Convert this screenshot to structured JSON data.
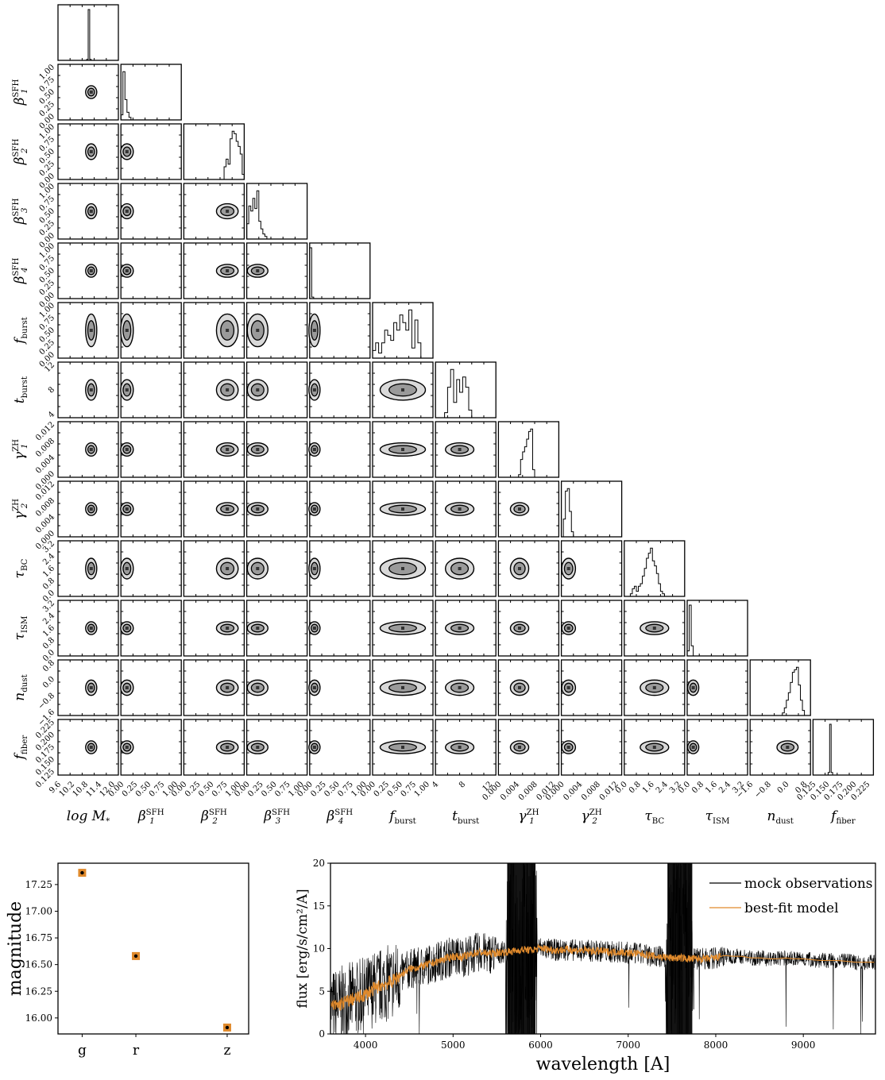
{
  "figure": {
    "corner_labels": [
      {
        "name": "log M*",
        "text": "log M*"
      },
      {
        "name": "beta1-sfh",
        "text": "β1 SFH"
      },
      {
        "name": "beta2-sfh",
        "text": "β2 SFH"
      },
      {
        "name": "beta3-sfh",
        "text": "β3 SFH"
      },
      {
        "name": "beta4-sfh",
        "text": "β4 SFH"
      },
      {
        "name": "f-burst",
        "text": "f burst"
      },
      {
        "name": "t-burst",
        "text": "t burst"
      },
      {
        "name": "gamma1-zh",
        "text": "γ1 ZH"
      },
      {
        "name": "gamma2-zh",
        "text": "γ2 ZH"
      },
      {
        "name": "tau-bc",
        "text": "τ BC"
      },
      {
        "name": "tau-ism",
        "text": "τ ISM"
      },
      {
        "name": "n-dust",
        "text": "n dust"
      },
      {
        "name": "f-fiber",
        "text": "f fiber"
      }
    ]
  },
  "chart_data": [
    {
      "type": "corner",
      "parameters": [
        {
          "sym": "log M",
          "sub": "*",
          "sup": "",
          "ticks": [
            "9.6",
            "10.2",
            "10.8",
            "11.4",
            "12.0"
          ],
          "hist": [
            0,
            0,
            0,
            0,
            0,
            0,
            0,
            0,
            0,
            0,
            0,
            0,
            0,
            0,
            0,
            0,
            0,
            0,
            0,
            0.02,
            1,
            0.02,
            0,
            0,
            0,
            0,
            0,
            0,
            0,
            0,
            0,
            0,
            0,
            0,
            0,
            0,
            0,
            0,
            0,
            0
          ],
          "center": [
            0.55,
            0.5
          ]
        },
        {
          "sym": "β",
          "sub": "1",
          "sup": "SFH",
          "ticks": [
            "0.00",
            "0.25",
            "0.50",
            "0.75",
            "1.00"
          ],
          "hist": [
            0.1,
            0.95,
            0.4,
            0.15,
            0.05,
            0,
            0,
            0,
            0,
            0,
            0,
            0,
            0,
            0,
            0,
            0,
            0,
            0,
            0,
            0,
            0,
            0,
            0,
            0,
            0,
            0,
            0,
            0,
            0,
            0
          ],
          "center": [
            0.1,
            0.5
          ]
        },
        {
          "sym": "β",
          "sub": "2",
          "sup": "SFH",
          "ticks": [
            "0.00",
            "0.25",
            "0.50",
            "0.75",
            "1.00"
          ],
          "hist": [
            0,
            0,
            0,
            0,
            0,
            0,
            0,
            0,
            0,
            0,
            0,
            0,
            0,
            0,
            0,
            0,
            0,
            0,
            0,
            0,
            0.25,
            0.4,
            0.3,
            0.8,
            0.95,
            0.9,
            0.75,
            0.65,
            0.5,
            0.1
          ],
          "center": [
            0.72,
            0.5
          ]
        },
        {
          "sym": "β",
          "sub": "3",
          "sup": "SFH",
          "ticks": [
            "0.00",
            "0.25",
            "0.50",
            "0.75",
            "1.00"
          ],
          "hist": [
            0.3,
            0.65,
            0.55,
            0.8,
            0.6,
            0.95,
            0.35,
            0.2,
            0.1,
            0.05,
            0,
            0,
            0,
            0,
            0,
            0,
            0,
            0,
            0,
            0,
            0,
            0,
            0,
            0,
            0,
            0,
            0,
            0,
            0,
            0
          ],
          "center": [
            0.18,
            0.5
          ]
        },
        {
          "sym": "β",
          "sub": "4",
          "sup": "SFH",
          "ticks": [
            "0.00",
            "0.25",
            "0.50",
            "0.75",
            "1.00"
          ],
          "hist": [
            1,
            0.03,
            0,
            0,
            0,
            0,
            0,
            0,
            0,
            0,
            0,
            0,
            0,
            0,
            0,
            0,
            0,
            0,
            0,
            0,
            0,
            0,
            0,
            0,
            0,
            0,
            0,
            0,
            0,
            0
          ],
          "center": [
            0.08,
            0.5
          ]
        },
        {
          "sym": "f",
          "sub": "burst",
          "sup": "",
          "ticks": [
            "0.00",
            "0.25",
            "0.50",
            "0.75",
            "1.00"
          ],
          "hist": [
            0.15,
            0.3,
            0.1,
            0.3,
            0.55,
            0.45,
            0.35,
            0.7,
            0.55,
            0.85,
            0.7,
            0.55,
            0.95,
            0.2,
            0.75,
            0.3,
            0,
            0,
            0,
            0
          ],
          "center": [
            0.5,
            0.5
          ]
        },
        {
          "sym": "t",
          "sub": "burst",
          "sup": "",
          "ticks": [
            "4",
            "8",
            "12"
          ],
          "hist": [
            0,
            0,
            0,
            0.1,
            0.6,
            0.95,
            0.3,
            0.75,
            0.5,
            0.8,
            0.6,
            0.15,
            0,
            0,
            0,
            0,
            0,
            0,
            0,
            0
          ],
          "center": [
            0.4,
            0.5
          ]
        },
        {
          "sym": "γ",
          "sub": "1",
          "sup": "ZH",
          "ticks": [
            "0.000",
            "0.004",
            "0.008",
            "0.012"
          ],
          "hist": [
            0,
            0,
            0,
            0,
            0,
            0,
            0,
            0,
            0,
            0,
            0.05,
            0.35,
            0.5,
            0.6,
            0.75,
            0.9,
            0.95,
            0.15,
            0,
            0,
            0,
            0,
            0,
            0,
            0,
            0,
            0,
            0,
            0,
            0
          ],
          "center": [
            0.35,
            0.5
          ]
        },
        {
          "sym": "γ",
          "sub": "2",
          "sup": "ZH",
          "ticks": [
            "0.000",
            "0.004",
            "0.008",
            "0.012"
          ],
          "hist": [
            0,
            0.35,
            0.9,
            0.95,
            0.5,
            0.1,
            0,
            0,
            0,
            0,
            0,
            0,
            0,
            0,
            0,
            0,
            0,
            0,
            0,
            0,
            0,
            0,
            0,
            0,
            0,
            0,
            0,
            0,
            0,
            0
          ],
          "center": [
            0.12,
            0.5
          ]
        },
        {
          "sym": "τ",
          "sub": "BC",
          "sup": "",
          "ticks": [
            "0.0",
            "0.8",
            "1.6",
            "2.4",
            "3.2"
          ],
          "hist": [
            0,
            0,
            0,
            0.05,
            0.15,
            0.2,
            0.1,
            0.2,
            0.25,
            0.4,
            0.55,
            0.75,
            0.85,
            0.95,
            0.7,
            0.6,
            0.45,
            0.25,
            0.1,
            0.05,
            0,
            0,
            0,
            0,
            0,
            0,
            0,
            0,
            0,
            0
          ],
          "center": [
            0.5,
            0.5
          ]
        },
        {
          "sym": "τ",
          "sub": "ISM",
          "sup": "",
          "ticks": [
            "0.0",
            "0.8",
            "1.6",
            "2.4",
            "3.2"
          ],
          "hist": [
            0.1,
            1,
            0.2,
            0,
            0,
            0,
            0,
            0,
            0,
            0,
            0,
            0,
            0,
            0,
            0,
            0,
            0,
            0,
            0,
            0,
            0,
            0,
            0,
            0,
            0,
            0,
            0,
            0,
            0,
            0
          ],
          "center": [
            0.1,
            0.5
          ]
        },
        {
          "sym": "n",
          "sub": "dust",
          "sup": "",
          "ticks": [
            "−1.6",
            "−0.8",
            "0.0",
            "0.8"
          ],
          "hist": [
            0,
            0,
            0,
            0,
            0,
            0,
            0,
            0,
            0,
            0,
            0,
            0,
            0,
            0,
            0,
            0,
            0.05,
            0.15,
            0.3,
            0.45,
            0.65,
            0.85,
            0.9,
            0.95,
            0.6,
            0.3,
            0.1,
            0,
            0,
            0
          ],
          "center": [
            0.62,
            0.5
          ]
        },
        {
          "sym": "f",
          "sub": "fiber",
          "sup": "",
          "ticks": [
            "0.125",
            "0.150",
            "0.175",
            "0.200",
            "0.225"
          ],
          "hist": [
            0,
            0,
            0,
            0,
            0,
            0,
            0,
            0,
            0,
            0,
            0.05,
            1,
            0.05,
            0,
            0,
            0,
            0,
            0,
            0,
            0,
            0,
            0,
            0,
            0,
            0,
            0,
            0,
            0,
            0,
            0,
            0,
            0,
            0,
            0,
            0,
            0,
            0,
            0,
            0,
            0
          ],
          "center": [
            0.3,
            0.5
          ]
        }
      ]
    },
    {
      "type": "scatter",
      "title": "",
      "xlabel": "",
      "ylabel": "magnitude",
      "categories": [
        "g",
        "r",
        "z"
      ],
      "x": [
        0,
        1,
        2.7
      ],
      "values": [
        17.36,
        16.58,
        15.91
      ],
      "ylim": [
        15.85,
        17.45
      ],
      "yticks": [
        "16.00",
        "16.25",
        "16.50",
        "16.75",
        "17.00",
        "17.25"
      ],
      "ytick_values": [
        16.0,
        16.25,
        16.5,
        16.75,
        17.0,
        17.25
      ],
      "colors": {
        "marker": "#e08a2c",
        "model": "#000000"
      }
    },
    {
      "type": "line",
      "xlabel": "wavelength [A]",
      "ylabel": "flux [erg/s/cm²/A]",
      "xlim": [
        3600,
        9824
      ],
      "ylim": [
        0,
        20
      ],
      "xticks": [
        "4000",
        "5000",
        "6000",
        "7000",
        "8000",
        "9000"
      ],
      "xtick_values": [
        4000,
        5000,
        6000,
        7000,
        8000,
        9000
      ],
      "yticks": [
        "0",
        "5",
        "10",
        "15",
        "20"
      ],
      "ytick_values": [
        0,
        5,
        10,
        15,
        20
      ],
      "legend": "top-right",
      "series": [
        {
          "name": "mock observations",
          "color": "#000000"
        },
        {
          "name": "best-fit model",
          "color": "#e08a2c"
        }
      ],
      "model_curve": {
        "x": [
          3600,
          3700,
          3800,
          3900,
          4000,
          4100,
          4200,
          4300,
          4400,
          4500,
          4600,
          4700,
          4800,
          4900,
          5000,
          5100,
          5200,
          5300,
          5400,
          5500,
          5600,
          5700,
          5800,
          5900,
          6000,
          6100,
          6200,
          6300,
          6400,
          6500,
          6600,
          6700,
          6800,
          6900,
          7000,
          7100,
          7200,
          7300,
          7400,
          7500,
          7600,
          7700,
          7800,
          7900,
          8000,
          8100,
          8200,
          8300,
          8400,
          8500,
          8600,
          8700,
          8800,
          8900,
          9000,
          9100,
          9200,
          9300,
          9400,
          9500,
          9600,
          9700,
          9824
        ],
        "y": [
          3.2,
          3.4,
          3.9,
          4.2,
          4.6,
          5.3,
          5.8,
          6.1,
          6.9,
          7.6,
          7.8,
          8.1,
          8.4,
          8.8,
          9.1,
          9.0,
          9.3,
          9.6,
          9.4,
          9.5,
          9.6,
          9.7,
          9.9,
          9.8,
          10.1,
          9.9,
          9.8,
          9.9,
          9.8,
          9.8,
          9.7,
          9.7,
          9.6,
          9.6,
          9.5,
          9.4,
          9.3,
          9.1,
          9.0,
          8.9,
          8.9,
          8.8,
          8.8,
          8.8,
          8.9,
          9.2,
          9.1,
          9.1,
          8.9,
          8.9,
          8.8,
          8.8,
          8.9,
          8.8,
          8.8,
          8.7,
          8.6,
          8.6,
          8.6,
          8.5,
          8.4,
          8.4,
          8.4
        ]
      },
      "masked_regions": [
        [
          5600,
          5960
        ],
        [
          7430,
          7750
        ]
      ]
    }
  ]
}
